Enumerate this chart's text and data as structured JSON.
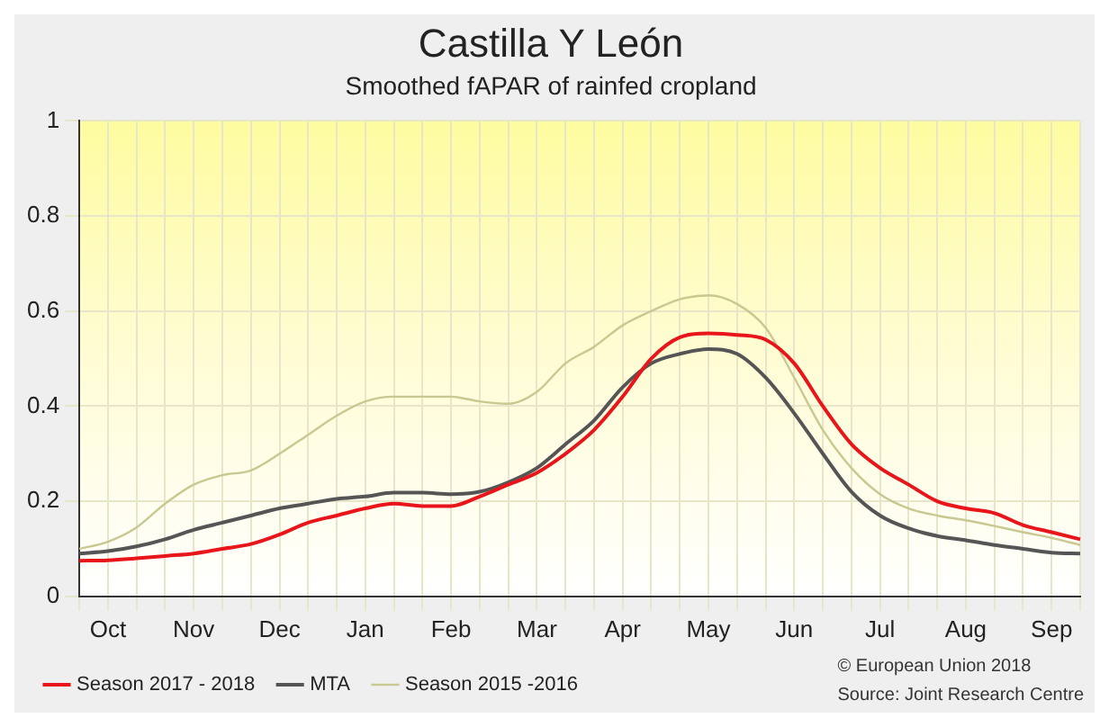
{
  "chart_data": {
    "type": "line",
    "title": "Castilla Y León",
    "subtitle": "Smoothed fAPAR of rainfed cropland",
    "categories": [
      null,
      "Oct",
      null,
      null,
      "Nov",
      null,
      null,
      "Dec",
      null,
      null,
      "Jan",
      null,
      null,
      "Feb",
      null,
      null,
      "Mar",
      null,
      null,
      "Apr",
      null,
      null,
      "May",
      null,
      null,
      "Jun",
      null,
      null,
      "Jul",
      null,
      null,
      "Aug",
      null,
      null,
      "Sep",
      null
    ],
    "series": [
      {
        "name": "Season 2017 - 2018",
        "color": "#e8161b",
        "values": [
          0.075,
          0.076,
          0.08,
          0.085,
          0.09,
          0.1,
          0.11,
          0.13,
          0.155,
          0.17,
          0.185,
          0.195,
          0.19,
          0.19,
          0.21,
          0.235,
          0.26,
          0.3,
          0.35,
          0.42,
          0.5,
          0.545,
          0.553,
          0.55,
          0.54,
          0.49,
          0.4,
          0.32,
          0.27,
          0.235,
          0.2,
          0.185,
          0.175,
          0.15,
          0.135,
          0.12
        ]
      },
      {
        "name": "MTA",
        "color": "#555555",
        "values": [
          0.09,
          0.095,
          0.105,
          0.12,
          0.14,
          0.155,
          0.17,
          0.185,
          0.195,
          0.205,
          0.21,
          0.218,
          0.218,
          0.215,
          0.22,
          0.24,
          0.27,
          0.32,
          0.37,
          0.44,
          0.49,
          0.51,
          0.52,
          0.51,
          0.46,
          0.385,
          0.3,
          0.22,
          0.17,
          0.143,
          0.127,
          0.118,
          0.108,
          0.1,
          0.092,
          0.09
        ]
      },
      {
        "name": "Season 2015 -2016",
        "color": "#c8c890",
        "values": [
          0.1,
          0.115,
          0.145,
          0.195,
          0.235,
          0.255,
          0.265,
          0.3,
          0.34,
          0.38,
          0.41,
          0.42,
          0.42,
          0.42,
          0.41,
          0.405,
          0.43,
          0.49,
          0.525,
          0.57,
          0.6,
          0.625,
          0.633,
          0.615,
          0.565,
          0.46,
          0.35,
          0.27,
          0.215,
          0.185,
          0.17,
          0.16,
          0.148,
          0.135,
          0.123,
          0.108
        ]
      }
    ],
    "ylim": [
      0,
      1
    ],
    "yticks": [
      0,
      0.2,
      0.4,
      0.6,
      0.8,
      1
    ],
    "grid": true,
    "legend": "bottom",
    "marker": "none",
    "line_style": "solid",
    "annotations": [
      "© European Union 2018",
      "Source: Joint Research Centre"
    ]
  }
}
